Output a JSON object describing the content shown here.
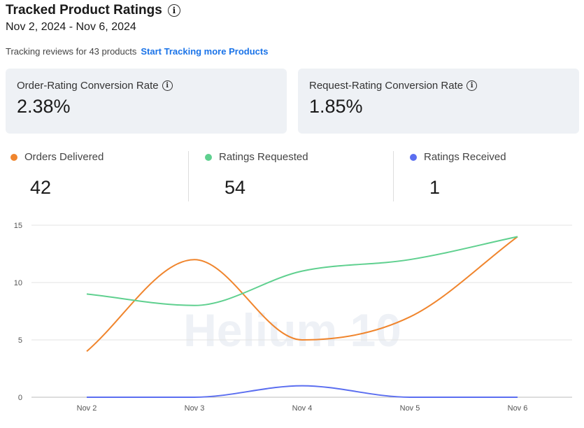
{
  "header": {
    "title": "Tracked Product Ratings",
    "date_range": "Nov 2, 2024 - Nov 6, 2024",
    "tracking_text": "Tracking reviews for 43 products",
    "tracking_link": "Start Tracking more Products"
  },
  "cards": [
    {
      "label": "Order-Rating Conversion Rate",
      "value": "2.38%"
    },
    {
      "label": "Request-Rating Conversion Rate",
      "value": "1.85%"
    }
  ],
  "stats": [
    {
      "label": "Orders Delivered",
      "value": "42",
      "color": "#f0852d"
    },
    {
      "label": "Ratings Requested",
      "value": "54",
      "color": "#5fd08f"
    },
    {
      "label": "Ratings Received",
      "value": "1",
      "color": "#5b6ef0"
    }
  ],
  "watermark": "Helium 10",
  "chart_data": {
    "type": "line",
    "categories": [
      "Nov 2",
      "Nov 3",
      "Nov 4",
      "Nov 5",
      "Nov 6"
    ],
    "ylim": [
      0,
      15
    ],
    "yticks": [
      0,
      5,
      10,
      15
    ],
    "series": [
      {
        "name": "Orders Delivered",
        "color": "#f0852d",
        "values": [
          4,
          12,
          5,
          7,
          14
        ]
      },
      {
        "name": "Ratings Requested",
        "color": "#5fd08f",
        "values": [
          9,
          8,
          11,
          12,
          14
        ]
      },
      {
        "name": "Ratings Received",
        "color": "#5b6ef0",
        "values": [
          0,
          0,
          1,
          0,
          0
        ]
      }
    ],
    "grid": true,
    "legend": "top"
  }
}
